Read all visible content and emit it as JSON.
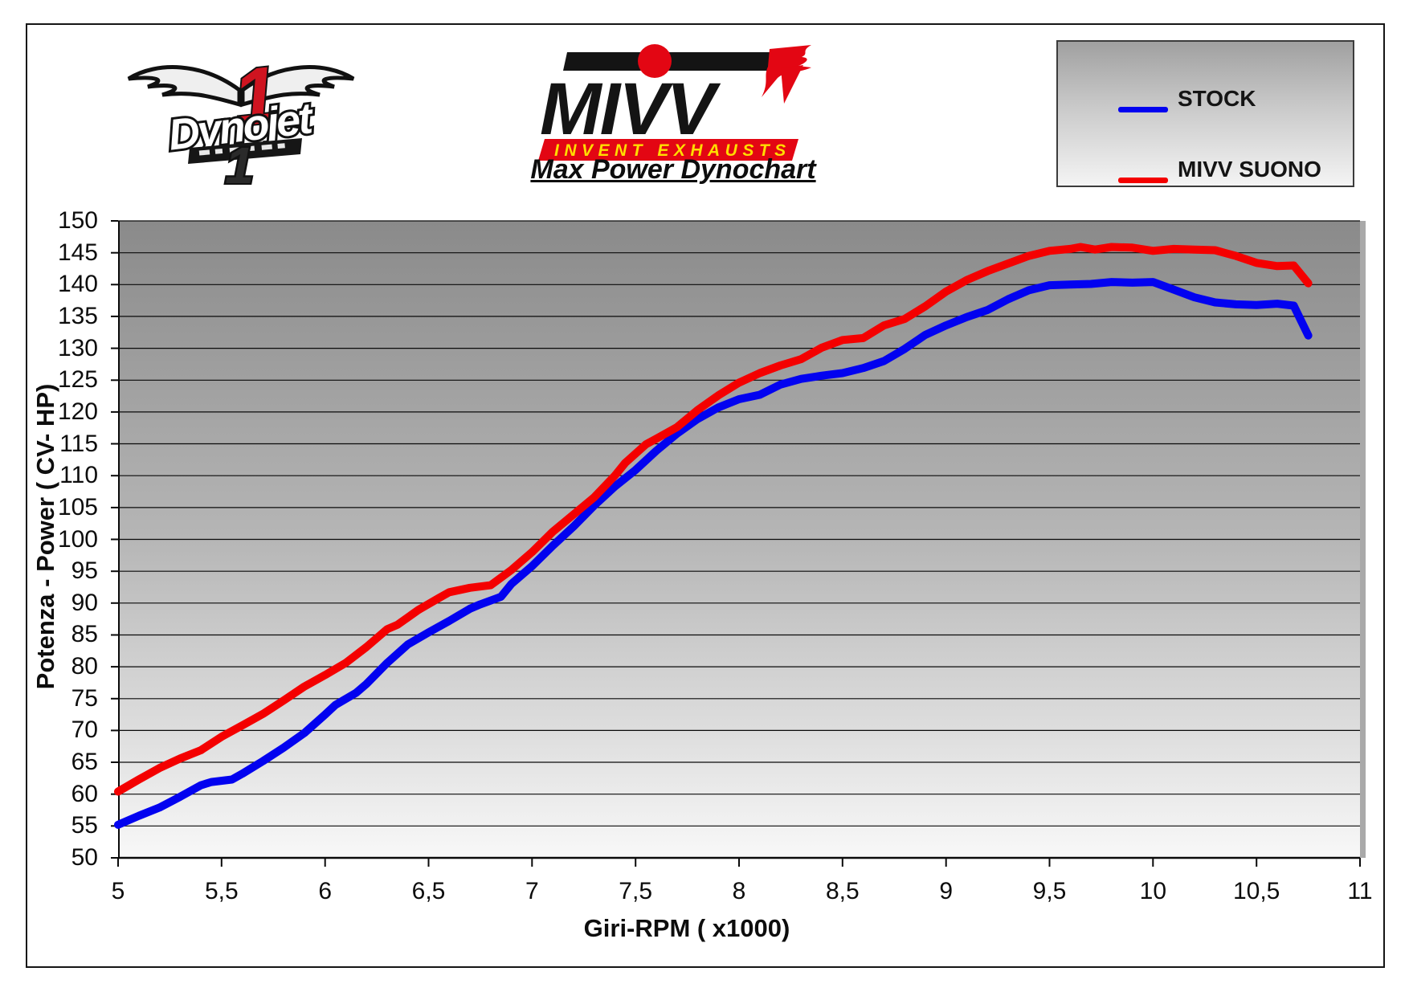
{
  "page_title": "Max Power Dynochart",
  "logos": {
    "dynojet": {
      "brand": "Dynojet",
      "numeral": "1"
    },
    "mivv": {
      "brand": "MIVV",
      "tagline": "INVENT EXHAUSTS"
    },
    "colors": {
      "mivv_red": "#e30613",
      "mivv_yellow": "#ffdd00",
      "dynojet_red": "#cf1420"
    }
  },
  "legend": {
    "items": [
      {
        "label": "STOCK",
        "color": "#0202f0"
      },
      {
        "label": "MIVV SUONO",
        "color": "#f40000"
      }
    ]
  },
  "chart_data": {
    "type": "line",
    "title": "Max Power Dynochart",
    "xlabel": "Giri-RPM ( x1000)",
    "ylabel": "Potenza - Power ( CV- HP)",
    "xlim": [
      5,
      11
    ],
    "ylim": [
      50,
      150
    ],
    "grid": "horizontal",
    "legend_position": "top-right",
    "x_tick_values": [
      5,
      5.5,
      6,
      6.5,
      7,
      7.5,
      8,
      8.5,
      9,
      9.5,
      10,
      10.5,
      11
    ],
    "x_tick_labels": [
      "5",
      "5,5",
      "6",
      "6,5",
      "7",
      "7,5",
      "8",
      "8,5",
      "9",
      "9,5",
      "10",
      "10,5",
      "11"
    ],
    "y_tick_values": [
      50,
      55,
      60,
      65,
      70,
      75,
      80,
      85,
      90,
      95,
      100,
      105,
      110,
      115,
      120,
      125,
      130,
      135,
      140,
      145,
      150
    ],
    "series": [
      {
        "name": "STOCK",
        "color": "#0202f0",
        "points": [
          [
            5.0,
            55.2
          ],
          [
            5.1,
            56.6
          ],
          [
            5.2,
            57.9
          ],
          [
            5.3,
            59.6
          ],
          [
            5.4,
            61.4
          ],
          [
            5.45,
            61.9
          ],
          [
            5.55,
            62.3
          ],
          [
            5.6,
            63.2
          ],
          [
            5.7,
            65.2
          ],
          [
            5.8,
            67.3
          ],
          [
            5.9,
            69.6
          ],
          [
            6.0,
            72.5
          ],
          [
            6.05,
            74.0
          ],
          [
            6.15,
            75.9
          ],
          [
            6.2,
            77.3
          ],
          [
            6.3,
            80.6
          ],
          [
            6.4,
            83.5
          ],
          [
            6.5,
            85.4
          ],
          [
            6.6,
            87.2
          ],
          [
            6.7,
            89.1
          ],
          [
            6.75,
            89.8
          ],
          [
            6.85,
            91.0
          ],
          [
            6.9,
            93.0
          ],
          [
            7.0,
            95.8
          ],
          [
            7.1,
            99.0
          ],
          [
            7.2,
            102.0
          ],
          [
            7.3,
            105.3
          ],
          [
            7.4,
            108.3
          ],
          [
            7.5,
            110.9
          ],
          [
            7.6,
            113.9
          ],
          [
            7.7,
            116.6
          ],
          [
            7.8,
            118.9
          ],
          [
            7.9,
            120.7
          ],
          [
            8.0,
            122.0
          ],
          [
            8.1,
            122.7
          ],
          [
            8.2,
            124.3
          ],
          [
            8.3,
            125.2
          ],
          [
            8.4,
            125.7
          ],
          [
            8.5,
            126.1
          ],
          [
            8.6,
            126.9
          ],
          [
            8.7,
            128.0
          ],
          [
            8.8,
            129.9
          ],
          [
            8.9,
            132.1
          ],
          [
            9.0,
            133.6
          ],
          [
            9.1,
            134.9
          ],
          [
            9.2,
            136.0
          ],
          [
            9.3,
            137.7
          ],
          [
            9.4,
            139.1
          ],
          [
            9.5,
            139.9
          ],
          [
            9.6,
            140.0
          ],
          [
            9.7,
            140.1
          ],
          [
            9.8,
            140.4
          ],
          [
            9.9,
            140.3
          ],
          [
            10.0,
            140.4
          ],
          [
            10.1,
            139.2
          ],
          [
            10.2,
            138.0
          ],
          [
            10.3,
            137.2
          ],
          [
            10.4,
            136.9
          ],
          [
            10.5,
            136.8
          ],
          [
            10.6,
            137.0
          ],
          [
            10.68,
            136.7
          ],
          [
            10.75,
            132.0
          ]
        ]
      },
      {
        "name": "MIVV SUONO",
        "color": "#f40000",
        "points": [
          [
            5.0,
            60.4
          ],
          [
            5.1,
            62.3
          ],
          [
            5.2,
            64.1
          ],
          [
            5.3,
            65.6
          ],
          [
            5.4,
            66.9
          ],
          [
            5.5,
            69.0
          ],
          [
            5.6,
            70.8
          ],
          [
            5.7,
            72.6
          ],
          [
            5.8,
            74.7
          ],
          [
            5.9,
            76.9
          ],
          [
            6.0,
            78.7
          ],
          [
            6.1,
            80.6
          ],
          [
            6.2,
            83.1
          ],
          [
            6.3,
            85.9
          ],
          [
            6.35,
            86.6
          ],
          [
            6.45,
            88.9
          ],
          [
            6.55,
            90.8
          ],
          [
            6.6,
            91.7
          ],
          [
            6.7,
            92.4
          ],
          [
            6.8,
            92.8
          ],
          [
            6.9,
            95.2
          ],
          [
            7.0,
            98.0
          ],
          [
            7.1,
            101.2
          ],
          [
            7.2,
            103.9
          ],
          [
            7.3,
            106.6
          ],
          [
            7.4,
            110.0
          ],
          [
            7.45,
            112.0
          ],
          [
            7.55,
            114.9
          ],
          [
            7.6,
            115.8
          ],
          [
            7.7,
            117.6
          ],
          [
            7.8,
            120.3
          ],
          [
            7.9,
            122.6
          ],
          [
            8.0,
            124.6
          ],
          [
            8.1,
            126.1
          ],
          [
            8.2,
            127.3
          ],
          [
            8.3,
            128.3
          ],
          [
            8.4,
            130.1
          ],
          [
            8.5,
            131.3
          ],
          [
            8.6,
            131.6
          ],
          [
            8.7,
            133.6
          ],
          [
            8.8,
            134.6
          ],
          [
            8.9,
            136.6
          ],
          [
            9.0,
            138.9
          ],
          [
            9.1,
            140.7
          ],
          [
            9.2,
            142.1
          ],
          [
            9.3,
            143.3
          ],
          [
            9.4,
            144.5
          ],
          [
            9.5,
            145.3
          ],
          [
            9.6,
            145.6
          ],
          [
            9.65,
            145.9
          ],
          [
            9.72,
            145.5
          ],
          [
            9.8,
            145.9
          ],
          [
            9.9,
            145.8
          ],
          [
            10.0,
            145.3
          ],
          [
            10.1,
            145.6
          ],
          [
            10.2,
            145.5
          ],
          [
            10.3,
            145.4
          ],
          [
            10.4,
            144.5
          ],
          [
            10.5,
            143.4
          ],
          [
            10.6,
            142.9
          ],
          [
            10.68,
            143.0
          ],
          [
            10.75,
            140.2
          ]
        ]
      }
    ]
  }
}
